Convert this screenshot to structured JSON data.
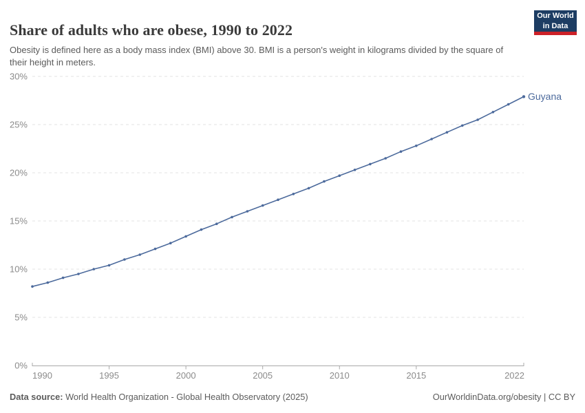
{
  "header": {
    "title": "Share of adults who are obese, 1990 to 2022",
    "subtitle": "Obesity is defined here as a body mass index (BMI) above 30. BMI is a person's weight in kilograms divided by the square of their height in meters.",
    "logo": {
      "line1": "Our World",
      "line2": "in Data"
    }
  },
  "chart_data": {
    "type": "line",
    "title": "Share of adults who are obese, 1990 to 2022",
    "series": [
      {
        "name": "Guyana",
        "color": "#4c6a9c",
        "x": [
          1990,
          1991,
          1992,
          1993,
          1994,
          1995,
          1996,
          1997,
          1998,
          1999,
          2000,
          2001,
          2002,
          2003,
          2004,
          2005,
          2006,
          2007,
          2008,
          2009,
          2010,
          2011,
          2012,
          2013,
          2014,
          2015,
          2016,
          2017,
          2018,
          2019,
          2020,
          2021,
          2022
        ],
        "values": [
          8.2,
          8.6,
          9.1,
          9.5,
          10.0,
          10.4,
          11.0,
          11.5,
          12.1,
          12.7,
          13.4,
          14.1,
          14.7,
          15.4,
          16.0,
          16.6,
          17.2,
          17.8,
          18.4,
          19.1,
          19.7,
          20.3,
          20.9,
          21.5,
          22.2,
          22.8,
          23.5,
          24.2,
          24.9,
          25.5,
          26.3,
          27.1,
          27.9
        ]
      }
    ],
    "xlabel": "",
    "ylabel": "",
    "xlim": [
      1990,
      2022
    ],
    "ylim": [
      0,
      30
    ],
    "x_tick_labels": [
      "1990",
      "1995",
      "2000",
      "2005",
      "2010",
      "2015",
      "2022"
    ],
    "x_tick_values": [
      1990,
      1995,
      2000,
      2005,
      2010,
      2015,
      2022
    ],
    "y_tick_labels": [
      "0%",
      "5%",
      "10%",
      "15%",
      "20%",
      "25%",
      "30%"
    ],
    "y_tick_values": [
      0,
      5,
      10,
      15,
      20,
      25,
      30
    ],
    "grid": "horizontal-dashed",
    "legend_position": "end-of-line"
  },
  "footer": {
    "data_source_label": "Data source:",
    "data_source_text": " World Health Organization - Global Health Observatory (2025)",
    "link_text": "OurWorldinData.org/obesity | CC BY"
  },
  "colors": {
    "line": "#4c6a9c",
    "grid": "#e3e3e3",
    "axis": "#a8a8a8",
    "tick_label": "#8b8b8b",
    "title": "#3a3a3a",
    "subtitle": "#5a5a5a",
    "footer": "#5b5b5b",
    "logo_bg": "#1d3d63",
    "logo_accent": "#cc2128"
  }
}
